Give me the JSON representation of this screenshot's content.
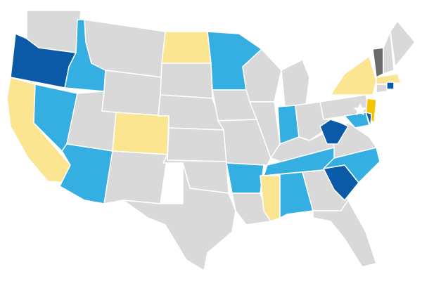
{
  "map": {
    "fills": [
      "#d9d9d9",
      "#fbe590",
      "#35aee2",
      "#0a5aa8",
      "#f5c400",
      "#6b6b6b"
    ]
  }
}
